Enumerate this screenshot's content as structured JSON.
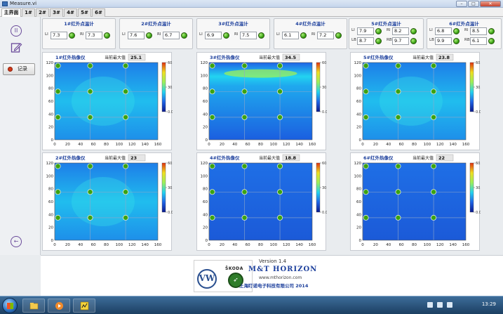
{
  "window": {
    "title": "Measure.vi"
  },
  "tabs": [
    "主界面",
    "1#",
    "2#",
    "3#",
    "4#",
    "5#",
    "6#"
  ],
  "left_panel": {
    "record_label": "记录"
  },
  "gauges": [
    {
      "title": "1#红外点温计",
      "fields": [
        {
          "key": "LI",
          "value": "7.3"
        },
        {
          "key": "RI",
          "value": "7.3"
        }
      ]
    },
    {
      "title": "2#红外点温计",
      "fields": [
        {
          "key": "LI",
          "value": "7.6"
        },
        {
          "key": "RI",
          "value": "6.7"
        }
      ]
    },
    {
      "title": "3#红外点温计",
      "fields": [
        {
          "key": "LI",
          "value": "6.9"
        },
        {
          "key": "RI",
          "value": "7.5"
        }
      ]
    },
    {
      "title": "4#红外点温计",
      "fields": [
        {
          "key": "LI",
          "value": "6.1"
        },
        {
          "key": "RI",
          "value": "7.2"
        }
      ]
    },
    {
      "title": "5#红外点温计",
      "fields": [
        {
          "key": "LI",
          "value": "7.9"
        },
        {
          "key": "RI",
          "value": "8.2"
        },
        {
          "key": "LB",
          "value": "8.7"
        },
        {
          "key": "RB",
          "value": "9.7"
        }
      ]
    },
    {
      "title": "6#红外点温计",
      "fields": [
        {
          "key": "LI",
          "value": "6.8"
        },
        {
          "key": "RI",
          "value": "8.5"
        },
        {
          "key": "LB",
          "value": "9.9"
        },
        {
          "key": "RB",
          "value": "6.1"
        }
      ]
    }
  ],
  "cameras": [
    {
      "title": "1#红外热像仪",
      "max_label": "当前最大值",
      "max": "25.1",
      "hot": "center"
    },
    {
      "title": "3#红外热像仪",
      "max_label": "当前最大值",
      "max": "34.5",
      "hot": "top"
    },
    {
      "title": "5#红外热像仪",
      "max_label": "当前最大值",
      "max": "23.8",
      "hot": "center"
    },
    {
      "title": "2#红外热像仪",
      "max_label": "当前最大值",
      "max": "23",
      "hot": "center"
    },
    {
      "title": "4#红外热像仪",
      "max_label": "当前最大值",
      "max": "18.8",
      "hot": "none"
    },
    {
      "title": "6#红外热像仪",
      "max_label": "当前最大值",
      "max": "22",
      "hot": "none"
    }
  ],
  "chart_axes": {
    "x_ticks": [
      "0",
      "20",
      "40",
      "60",
      "80",
      "100",
      "120",
      "140",
      "160"
    ],
    "y_ticks": [
      "0",
      "20",
      "40",
      "60",
      "80",
      "100",
      "120"
    ],
    "colorbar_ticks": [
      "60.0",
      "30.0",
      "0.0"
    ],
    "xlim": [
      0,
      160
    ],
    "ylim": [
      0,
      120
    ],
    "colorscale": [
      "#0a1a8c",
      "#1f63e6",
      "#22d3f0",
      "#9cf05a",
      "#f0e020",
      "#e03010"
    ]
  },
  "footer": {
    "version": "Version 1.4",
    "brand": "M&T HORIZON",
    "url": "www.mthorizon.com",
    "company": "上海盯诺电子科技有限公司  2014",
    "skoda_text": "ŠKODA",
    "vw_text": "VW"
  },
  "taskbar": {
    "time": "13:29"
  }
}
